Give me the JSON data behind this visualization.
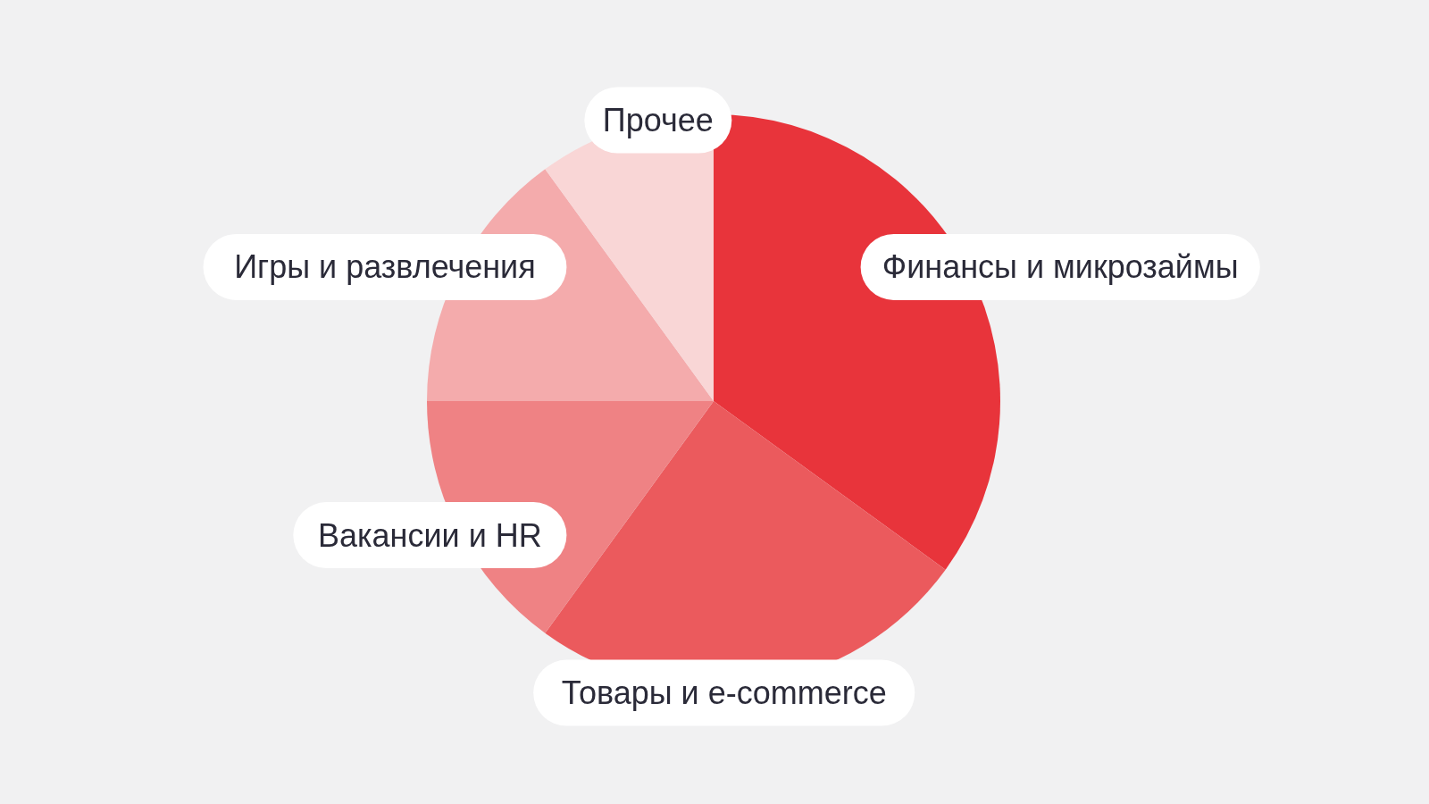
{
  "chart_data": {
    "type": "pie",
    "categories": [
      "Финансы и микрозаймы",
      "Товары и e-commerce",
      "Вакансии и HR",
      "Игры и развлечения",
      "Прочее"
    ],
    "values": [
      35,
      25,
      15,
      15,
      10
    ],
    "colors": [
      "#e8343b",
      "#eb5a5d",
      "#ef8284",
      "#f4abac",
      "#f9d6d6"
    ]
  }
}
